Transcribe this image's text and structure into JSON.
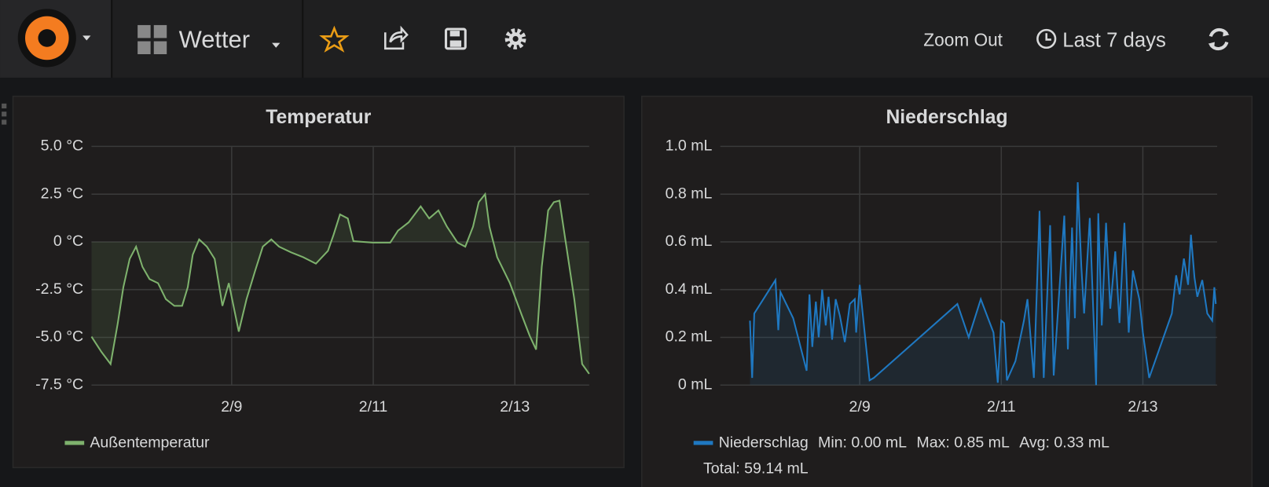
{
  "header": {
    "dashboard": "Wetter",
    "zoom": "Zoom Out",
    "range": "Last 7 days"
  },
  "chart_data": [
    {
      "type": "line",
      "title": "Temperatur",
      "x": [
        7.02,
        7.16,
        7.29,
        7.39,
        7.47,
        7.56,
        7.65,
        7.74,
        7.84,
        7.96,
        8.07,
        8.19,
        8.3,
        8.38,
        8.45,
        8.54,
        8.65,
        8.76,
        8.87,
        8.96,
        9.1,
        9.21,
        9.33,
        9.44,
        9.56,
        9.67,
        9.84,
        10.01,
        10.19,
        10.36,
        10.44,
        10.53,
        10.64,
        10.72,
        10.99,
        11.24,
        11.35,
        11.5,
        11.67,
        11.79,
        11.92,
        12.04,
        12.19,
        12.3,
        12.41,
        12.49,
        12.58,
        12.64,
        12.75,
        12.93,
        13.1,
        13.21,
        13.3,
        13.38,
        13.47,
        13.55,
        13.63,
        13.72,
        13.84,
        13.95,
        14.05
      ],
      "series": [
        {
          "name": "Außentemperatur",
          "color": "#7eb26d",
          "values": [
            -4.96,
            -5.76,
            -6.4,
            -4.28,
            -2.37,
            -0.89,
            -0.25,
            -1.31,
            -1.95,
            -2.16,
            -3.0,
            -3.35,
            -3.35,
            -2.37,
            -0.68,
            0.13,
            -0.25,
            -0.89,
            -3.35,
            -2.16,
            -4.7,
            -3.0,
            -1.53,
            -0.25,
            0.13,
            -0.25,
            -0.55,
            -0.8,
            -1.14,
            -0.47,
            0.38,
            1.44,
            1.23,
            0.04,
            -0.04,
            -0.04,
            0.59,
            1.02,
            1.86,
            1.23,
            1.65,
            0.8,
            -0.04,
            -0.25,
            0.8,
            2.08,
            2.5,
            0.8,
            -0.8,
            -2.16,
            -3.86,
            -4.92,
            -5.64,
            -1.31,
            1.65,
            2.08,
            2.16,
            -0.04,
            -3.0,
            -6.4,
            -6.91
          ]
        }
      ],
      "xlim": [
        7.02,
        14.05
      ],
      "xticks": [
        {
          "value": 9,
          "label": "2/9"
        },
        {
          "value": 11,
          "label": "2/11"
        },
        {
          "value": 13,
          "label": "2/13"
        }
      ],
      "ylim": [
        -7.5,
        5
      ],
      "yticks": [
        {
          "value": -7.5,
          "label": "-7.5 °C"
        },
        {
          "value": -5,
          "label": "-5.0 °C"
        },
        {
          "value": -2.5,
          "label": "-2.5 °C"
        },
        {
          "value": 0,
          "label": "0 °C"
        },
        {
          "value": 2.5,
          "label": "2.5 °C"
        },
        {
          "value": 5,
          "label": "5.0 °C"
        }
      ],
      "grid": true,
      "fill_color": "#7eb26d"
    },
    {
      "type": "line",
      "title": "Niederschlag",
      "x": [
        7.45,
        7.48,
        7.51,
        7.81,
        7.85,
        7.88,
        8.06,
        8.25,
        8.29,
        8.33,
        8.38,
        8.42,
        8.47,
        8.52,
        8.56,
        8.61,
        8.66,
        8.72,
        8.79,
        8.86,
        8.93,
        8.95,
        9.0,
        9.14,
        9.2,
        10.38,
        10.54,
        10.71,
        10.89,
        10.95,
        11.0,
        11.04,
        11.08,
        11.2,
        11.32,
        11.37,
        11.46,
        11.54,
        11.6,
        11.69,
        11.74,
        11.89,
        11.94,
        12.0,
        12.04,
        12.08,
        12.13,
        12.17,
        12.25,
        12.34,
        12.37,
        12.42,
        12.48,
        12.54,
        12.61,
        12.67,
        12.74,
        12.8,
        12.86,
        12.95,
        13.0,
        13.09,
        13.41,
        13.47,
        13.52,
        13.58,
        13.64,
        13.68,
        13.73,
        13.77,
        13.84,
        13.91,
        13.98,
        14.01,
        14.03
      ],
      "series": [
        {
          "name": "Niederschlag",
          "color": "#1f78c1",
          "values": [
            0.27,
            0.03,
            0.3,
            0.44,
            0.23,
            0.39,
            0.28,
            0.06,
            0.38,
            0.16,
            0.35,
            0.2,
            0.4,
            0.25,
            0.37,
            0.19,
            0.36,
            0.29,
            0.18,
            0.34,
            0.36,
            0.22,
            0.42,
            0.02,
            0.03,
            0.34,
            0.2,
            0.36,
            0.22,
            0.01,
            0.27,
            0.26,
            0.02,
            0.1,
            0.27,
            0.36,
            0.03,
            0.73,
            0.03,
            0.67,
            0.04,
            0.71,
            0.15,
            0.66,
            0.28,
            0.85,
            0.5,
            0.3,
            0.7,
            0.0,
            0.72,
            0.25,
            0.68,
            0.32,
            0.56,
            0.26,
            0.68,
            0.22,
            0.48,
            0.36,
            0.22,
            0.03,
            0.3,
            0.46,
            0.38,
            0.53,
            0.42,
            0.63,
            0.45,
            0.37,
            0.44,
            0.3,
            0.27,
            0.41,
            0.34
          ]
        }
      ],
      "legend_stats": [
        "Min: 0.00 mL",
        "Max: 0.85 mL",
        "Avg: 0.33 mL",
        "Total: 59.14 mL"
      ],
      "xlim": [
        7.03,
        14.05
      ],
      "xticks": [
        {
          "value": 9,
          "label": "2/9"
        },
        {
          "value": 11,
          "label": "2/11"
        },
        {
          "value": 13,
          "label": "2/13"
        }
      ],
      "ylim": [
        0,
        1
      ],
      "yticks": [
        {
          "value": 0,
          "label": "0 mL"
        },
        {
          "value": 0.2,
          "label": "0.2 mL"
        },
        {
          "value": 0.4,
          "label": "0.4 mL"
        },
        {
          "value": 0.6,
          "label": "0.6 mL"
        },
        {
          "value": 0.8,
          "label": "0.8 mL"
        },
        {
          "value": 1,
          "label": "1.0 mL"
        }
      ],
      "grid": true,
      "fill_color": "#1f78c1"
    }
  ]
}
